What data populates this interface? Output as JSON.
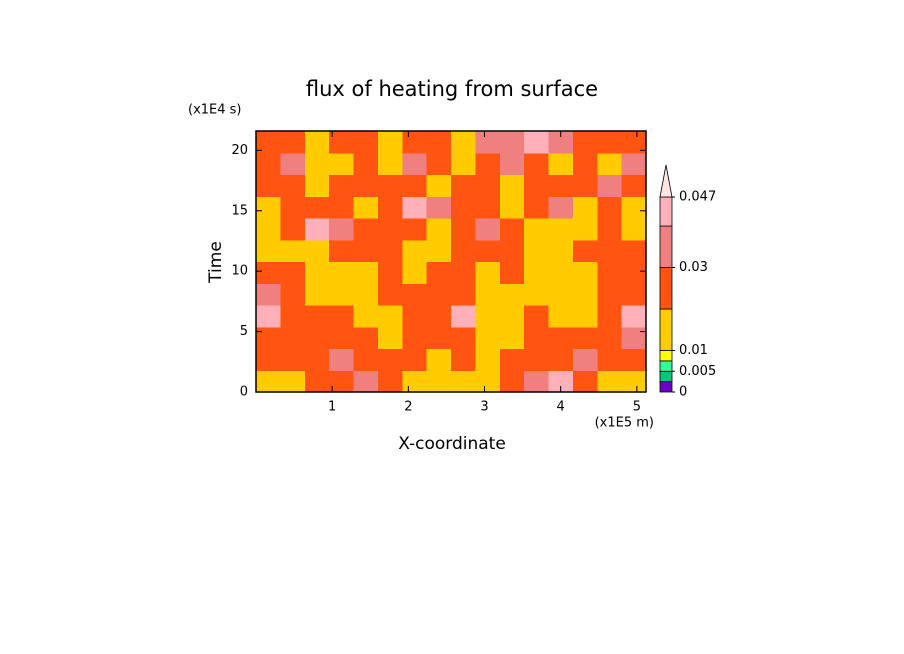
{
  "chart_data": {
    "type": "contour",
    "title": "flux of heating from surface",
    "x_label": "X-coordinate",
    "y_label": "Time",
    "x_unit": "(x1E5 m)",
    "y_unit": "(x1E4 s)",
    "xlim": [
      0,
      5.12
    ],
    "ylim": [
      0,
      21.6
    ],
    "xticks": [
      1,
      2,
      3,
      4,
      5
    ],
    "yticks": [
      0,
      5,
      10,
      15,
      20
    ],
    "levels": [
      0,
      0.0025,
      0.005,
      0.0075,
      0.01,
      0.02,
      0.03,
      0.04,
      0.047
    ],
    "level_colors": [
      "#6a00c8",
      "#00c87a",
      "#33ff99",
      "#ffff00",
      "#ffcc00",
      "#ff5510",
      "#f08080",
      "#ffb0b8",
      "#ffe4e4"
    ],
    "colorbar_ticks": [
      0,
      0.005,
      0.01,
      0.03,
      0.047
    ],
    "z": [
      [
        0.015,
        0.015,
        0.025,
        0.025,
        0.035,
        0.025,
        0.015,
        0.015,
        0.015,
        0.015,
        0.025,
        0.035,
        0.045,
        0.025,
        0.015,
        0.015
      ],
      [
        0.025,
        0.025,
        0.025,
        0.035,
        0.025,
        0.025,
        0.025,
        0.015,
        0.025,
        0.015,
        0.025,
        0.025,
        0.025,
        0.035,
        0.025,
        0.025
      ],
      [
        0.025,
        0.025,
        0.025,
        0.025,
        0.025,
        0.015,
        0.025,
        0.025,
        0.025,
        0.015,
        0.015,
        0.025,
        0.025,
        0.025,
        0.025,
        0.035
      ],
      [
        0.045,
        0.025,
        0.025,
        0.025,
        0.015,
        0.015,
        0.025,
        0.025,
        0.042,
        0.015,
        0.015,
        0.025,
        0.015,
        0.015,
        0.025,
        0.042
      ],
      [
        0.035,
        0.025,
        0.015,
        0.015,
        0.015,
        0.025,
        0.025,
        0.025,
        0.025,
        0.015,
        0.015,
        0.015,
        0.015,
        0.015,
        0.025,
        0.025
      ],
      [
        0.025,
        0.025,
        0.015,
        0.015,
        0.015,
        0.025,
        0.015,
        0.025,
        0.025,
        0.015,
        0.025,
        0.015,
        0.015,
        0.015,
        0.025,
        0.025
      ],
      [
        0.015,
        0.015,
        0.015,
        0.025,
        0.025,
        0.025,
        0.015,
        0.015,
        0.025,
        0.025,
        0.025,
        0.015,
        0.015,
        0.025,
        0.025,
        0.025
      ],
      [
        0.015,
        0.025,
        0.042,
        0.035,
        0.025,
        0.025,
        0.025,
        0.015,
        0.025,
        0.035,
        0.025,
        0.015,
        0.015,
        0.015,
        0.025,
        0.015
      ],
      [
        0.015,
        0.025,
        0.025,
        0.025,
        0.015,
        0.025,
        0.045,
        0.035,
        0.025,
        0.025,
        0.015,
        0.025,
        0.035,
        0.015,
        0.025,
        0.015
      ],
      [
        0.025,
        0.025,
        0.015,
        0.025,
        0.025,
        0.025,
        0.025,
        0.015,
        0.025,
        0.025,
        0.015,
        0.025,
        0.025,
        0.025,
        0.035,
        0.025
      ],
      [
        0.025,
        0.035,
        0.015,
        0.015,
        0.025,
        0.015,
        0.035,
        0.025,
        0.015,
        0.025,
        0.035,
        0.025,
        0.015,
        0.025,
        0.015,
        0.035
      ],
      [
        0.025,
        0.025,
        0.015,
        0.025,
        0.025,
        0.015,
        0.025,
        0.025,
        0.015,
        0.035,
        0.035,
        0.045,
        0.035,
        0.025,
        0.025,
        0.025
      ]
    ]
  }
}
